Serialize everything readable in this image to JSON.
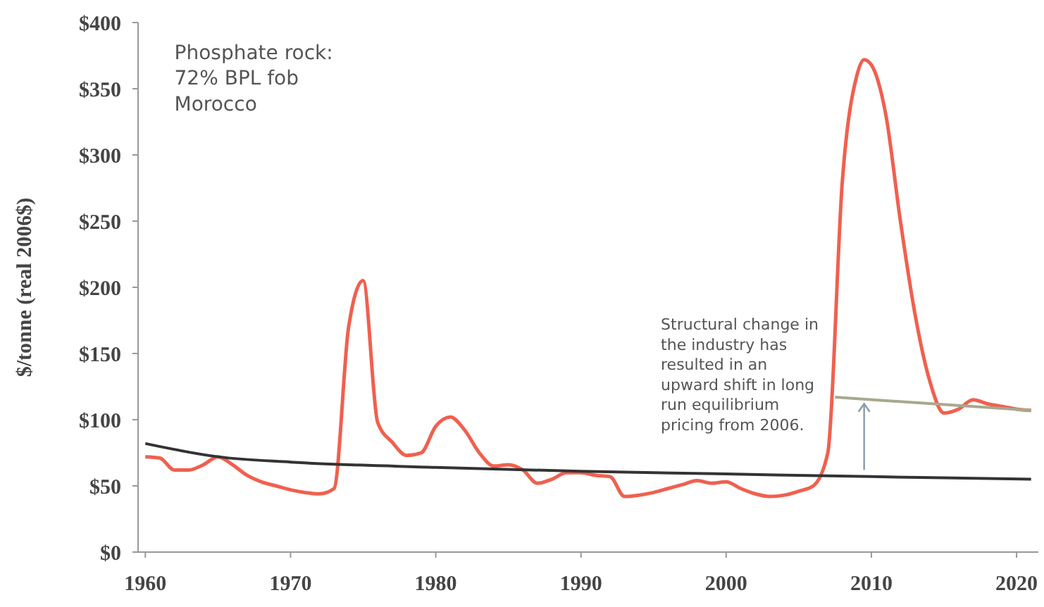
{
  "chart_data": {
    "type": "line",
    "ylabel": "$/tonne (real 2006$)",
    "xlim": [
      1959.5,
      2021.5
    ],
    "xticks": [
      1960,
      1970,
      1980,
      1990,
      2000,
      2010,
      2020
    ],
    "ylim": [
      0,
      400
    ],
    "yticks": [
      {
        "value": 0,
        "label": "$0"
      },
      {
        "value": 50,
        "label": "$50"
      },
      {
        "value": 100,
        "label": "$100"
      },
      {
        "value": 150,
        "label": "$150"
      },
      {
        "value": 200,
        "label": "$200"
      },
      {
        "value": 250,
        "label": "$250"
      },
      {
        "value": 300,
        "label": "$300"
      },
      {
        "value": 350,
        "label": "$350"
      },
      {
        "value": 400,
        "label": "$400"
      }
    ],
    "grid": false,
    "marker": "none",
    "line_style": "solid",
    "series": [
      {
        "color": "#f0604f",
        "x": [
          1960,
          1961,
          1962,
          1963,
          1964,
          1965,
          1966,
          1967,
          1968,
          1969,
          1970,
          1971,
          1972,
          1973,
          1974,
          1975,
          1976,
          1977,
          1978,
          1979,
          1980,
          1981,
          1982,
          1983,
          1984,
          1985,
          1986,
          1987,
          1988,
          1989,
          1990,
          1991,
          1992,
          1993,
          1994,
          1995,
          1996,
          1997,
          1998,
          1999,
          2000,
          2001,
          2002,
          2003,
          2004,
          2005,
          2006,
          2007,
          2008,
          2009,
          2009.5,
          2010,
          2011,
          2012,
          2013,
          2014,
          2015,
          2016,
          2017,
          2018,
          2019,
          2020,
          2021
        ],
        "values": [
          72,
          71,
          62,
          62,
          66,
          72,
          66,
          58,
          53,
          50,
          47,
          45,
          44,
          48,
          170,
          205,
          98,
          83,
          73,
          75,
          95,
          102,
          92,
          75,
          65,
          66,
          62,
          52,
          55,
          60,
          60,
          58,
          57,
          42,
          43,
          45,
          48,
          51,
          54,
          52,
          53,
          48,
          44,
          42,
          43,
          46,
          50,
          75,
          280,
          360,
          372,
          368,
          330,
          250,
          180,
          130,
          105,
          108,
          115,
          112,
          110,
          108,
          107
        ]
      },
      {
        "type": "line",
        "color": "#333333",
        "x": [
          1960,
          1965,
          1970,
          1980,
          1990,
          2000,
          2010,
          2021
        ],
        "values": [
          82,
          72,
          68,
          64,
          61,
          59,
          57,
          55
        ]
      },
      {
        "type": "line",
        "color": "#a8a88e",
        "x": [
          2007.5,
          2021
        ],
        "values": [
          117,
          107
        ]
      }
    ],
    "annotations": [
      "Phosphate rock:\n72% BPL fob\nMorocco",
      "Structural change in\nthe industry has\nresulted in an\nupward shift in long\nrun equilibrium\npricing from 2006."
    ]
  }
}
